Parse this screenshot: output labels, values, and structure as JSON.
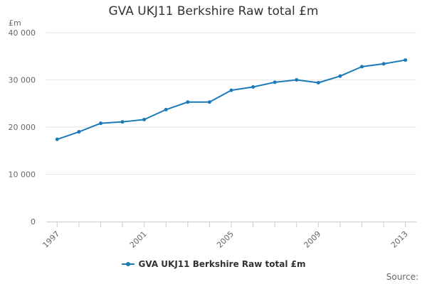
{
  "colors": {
    "series": "#1a7ab8",
    "grid": "#e6e6e6",
    "axis": "#cccccc",
    "tick_text": "#666666"
  },
  "chart_data": {
    "type": "line",
    "title": "GVA UKJ11 Berkshire Raw total £m",
    "ylabel": "£m",
    "xlabel": "",
    "x": [
      1997,
      1998,
      1999,
      2000,
      2001,
      2002,
      2003,
      2004,
      2005,
      2006,
      2007,
      2008,
      2009,
      2010,
      2011,
      2012,
      2013
    ],
    "series": [
      {
        "name": "GVA UKJ11 Berkshire Raw total £m",
        "values": [
          17400,
          19000,
          20800,
          21100,
          21600,
          23700,
          25300,
          25300,
          27800,
          28500,
          29500,
          30000,
          29400,
          30800,
          32800,
          33400,
          34200
        ]
      }
    ],
    "ylim": [
      0,
      40000
    ],
    "y_ticks": [
      0,
      10000,
      20000,
      30000,
      40000
    ],
    "y_tick_labels": [
      "0",
      "10 000",
      "20 000",
      "30 000",
      "40 000"
    ],
    "x_tick_labels": [
      "1997",
      "2001",
      "2005",
      "2009",
      "2013"
    ],
    "grid": true,
    "legend_position": "bottom"
  },
  "credits": "Source:"
}
